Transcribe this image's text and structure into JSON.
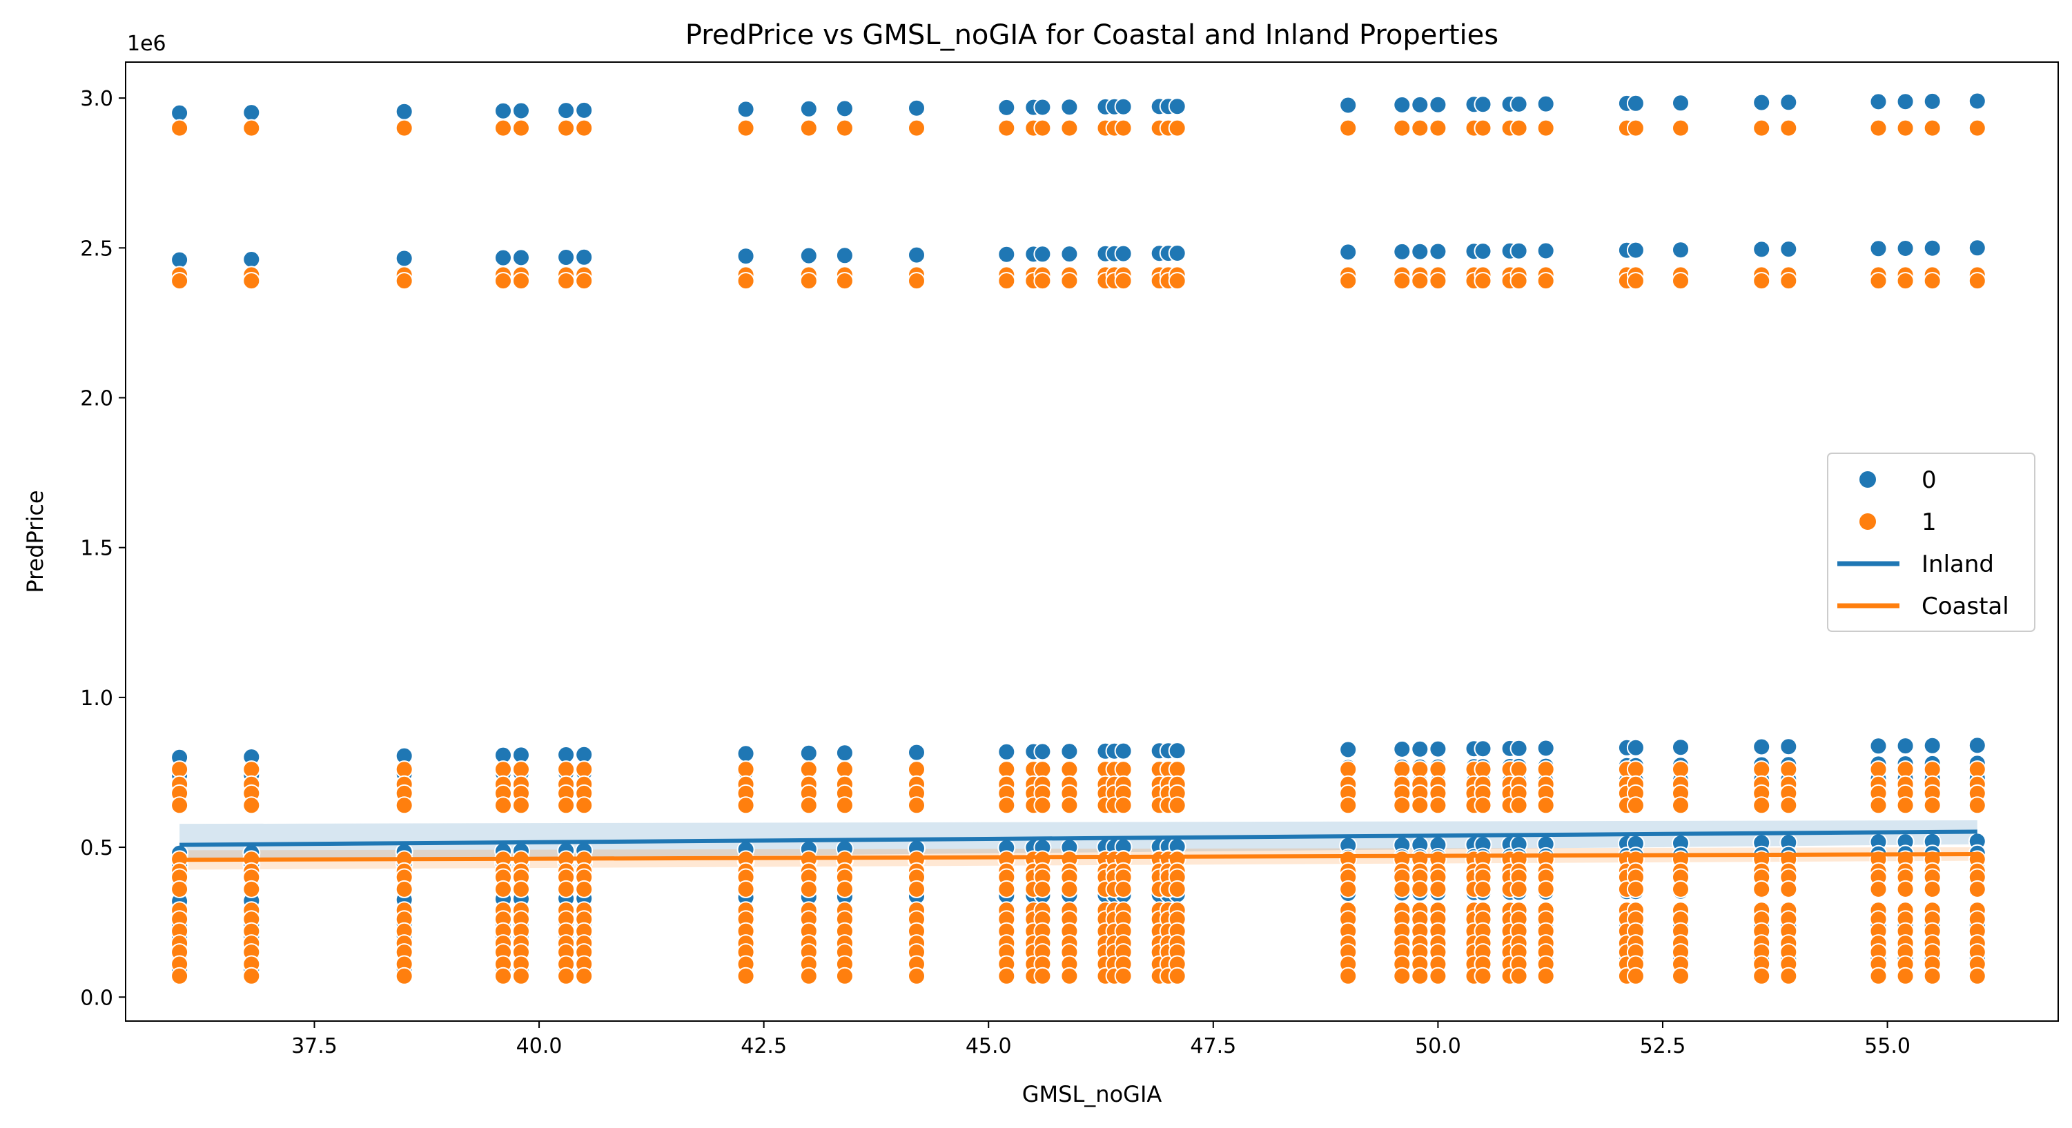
{
  "chart_data": {
    "type": "scatter",
    "title": "PredPrice vs GMSL_noGIA for Coastal and Inland Properties",
    "xlabel": "GMSL_noGIA",
    "ylabel": "PredPrice",
    "y_offset_label": "1e6",
    "xlim": [
      35.4,
      56.9
    ],
    "ylim": [
      -0.08,
      3.12
    ],
    "y_unit_multiplier": 1000000,
    "x_ticks": [
      37.5,
      40.0,
      42.5,
      45.0,
      47.5,
      50.0,
      52.5,
      55.0
    ],
    "x_tick_labels": [
      "37.5",
      "40.0",
      "42.5",
      "45.0",
      "47.5",
      "50.0",
      "52.5",
      "55.0"
    ],
    "y_ticks": [
      0.0,
      0.5,
      1.0,
      1.5,
      2.0,
      2.5,
      3.0
    ],
    "y_tick_labels": [
      "0.0",
      "0.5",
      "1.0",
      "1.5",
      "2.0",
      "2.5",
      "3.0"
    ],
    "grid": false,
    "legend_position": "right",
    "x_values": [
      36.0,
      36.8,
      38.5,
      39.6,
      39.8,
      40.3,
      40.5,
      42.3,
      43.0,
      43.4,
      44.2,
      45.2,
      45.5,
      45.6,
      45.9,
      46.3,
      46.4,
      46.5,
      46.9,
      47.0,
      47.1,
      49.0,
      49.6,
      49.8,
      50.0,
      50.4,
      50.5,
      50.8,
      50.9,
      51.2,
      52.1,
      52.2,
      52.7,
      53.6,
      53.9,
      54.9,
      55.2,
      55.5,
      56.0
    ],
    "series": [
      {
        "name": "0",
        "color": "#1f77b4",
        "y_base_levels": [
          2.95,
          2.46,
          0.8,
          0.74,
          0.69,
          0.48,
          0.44,
          0.39,
          0.32,
          0.24,
          0.2,
          0.14,
          0.09
        ],
        "y_slope_per_x": 0.002
      },
      {
        "name": "1",
        "color": "#ff7f0e",
        "y_levels": [
          2.9,
          2.41,
          2.39,
          0.76,
          0.71,
          0.68,
          0.64,
          0.46,
          0.42,
          0.4,
          0.36,
          0.29,
          0.26,
          0.22,
          0.18,
          0.15,
          0.11,
          0.07
        ]
      }
    ],
    "regression_lines": [
      {
        "name": "Inland",
        "color": "#1f77b4",
        "x": [
          36.0,
          56.0
        ],
        "y": [
          0.508,
          0.552
        ],
        "ci_low": [
          0.455,
          0.51
        ],
        "ci_high": [
          0.578,
          0.59
        ]
      },
      {
        "name": "Coastal",
        "color": "#ff7f0e",
        "x": [
          36.0,
          56.0
        ],
        "y": [
          0.458,
          0.477
        ],
        "ci_low": [
          0.425,
          0.455
        ],
        "ci_high": [
          0.49,
          0.5
        ]
      }
    ],
    "legend": [
      {
        "label": "0",
        "kind": "marker",
        "color": "#1f77b4"
      },
      {
        "label": "1",
        "kind": "marker",
        "color": "#ff7f0e"
      },
      {
        "label": "Inland",
        "kind": "line",
        "color": "#1f77b4"
      },
      {
        "label": "Coastal",
        "kind": "line",
        "color": "#ff7f0e"
      }
    ]
  }
}
